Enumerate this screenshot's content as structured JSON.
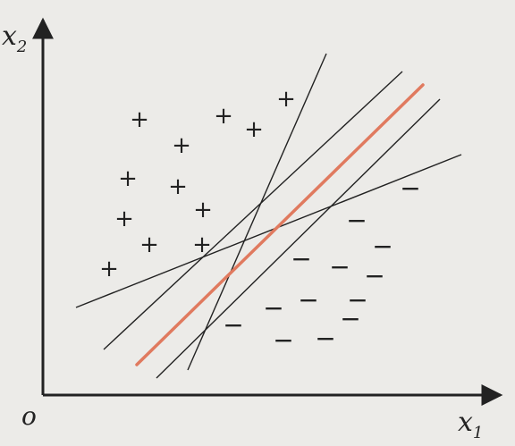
{
  "axes": {
    "x_label": "x",
    "x_sub": "1",
    "y_label": "x",
    "y_sub": "2",
    "origin_label": "o"
  },
  "colors": {
    "background": "#ecebe8",
    "ink": "#222222",
    "optimal_line": "#e07a5f"
  },
  "symbols": {
    "positive": "+",
    "negative": "−"
  },
  "points": {
    "positive_count": 14,
    "negative_count": 16
  }
}
